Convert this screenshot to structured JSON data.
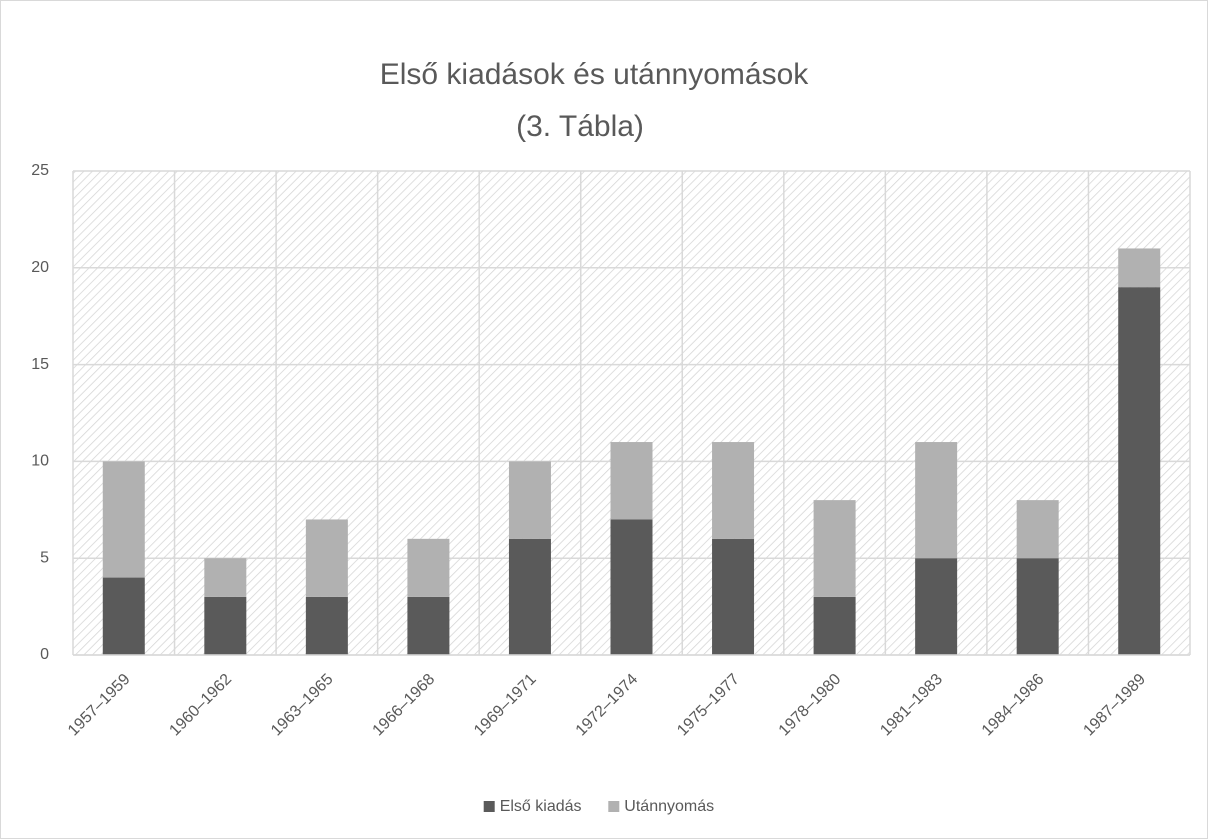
{
  "chart_data": {
    "type": "stacked_bar",
    "title": "Első kiadások és utánnyomások",
    "subtitle": "(3. Tábla)",
    "categories": [
      "1957–1959",
      "1960–1962",
      "1963–1965",
      "1966–1968",
      "1969–1971",
      "1972–1974",
      "1975–1977",
      "1978–1980",
      "1981–1983",
      "1984–1986",
      "1987–1989"
    ],
    "series": [
      {
        "name": "Első kiadás",
        "color": "#5a5a5a",
        "values": [
          4,
          3,
          3,
          3,
          6,
          7,
          6,
          3,
          5,
          5,
          19
        ]
      },
      {
        "name": "Utánnyomás",
        "color": "#b1b1b1",
        "values": [
          6,
          2,
          4,
          3,
          4,
          4,
          5,
          5,
          6,
          3,
          2
        ]
      }
    ],
    "ylim": [
      0,
      25
    ],
    "yticks": [
      0,
      5,
      10,
      15,
      20,
      25
    ],
    "grid": true,
    "legend": "bottom"
  }
}
